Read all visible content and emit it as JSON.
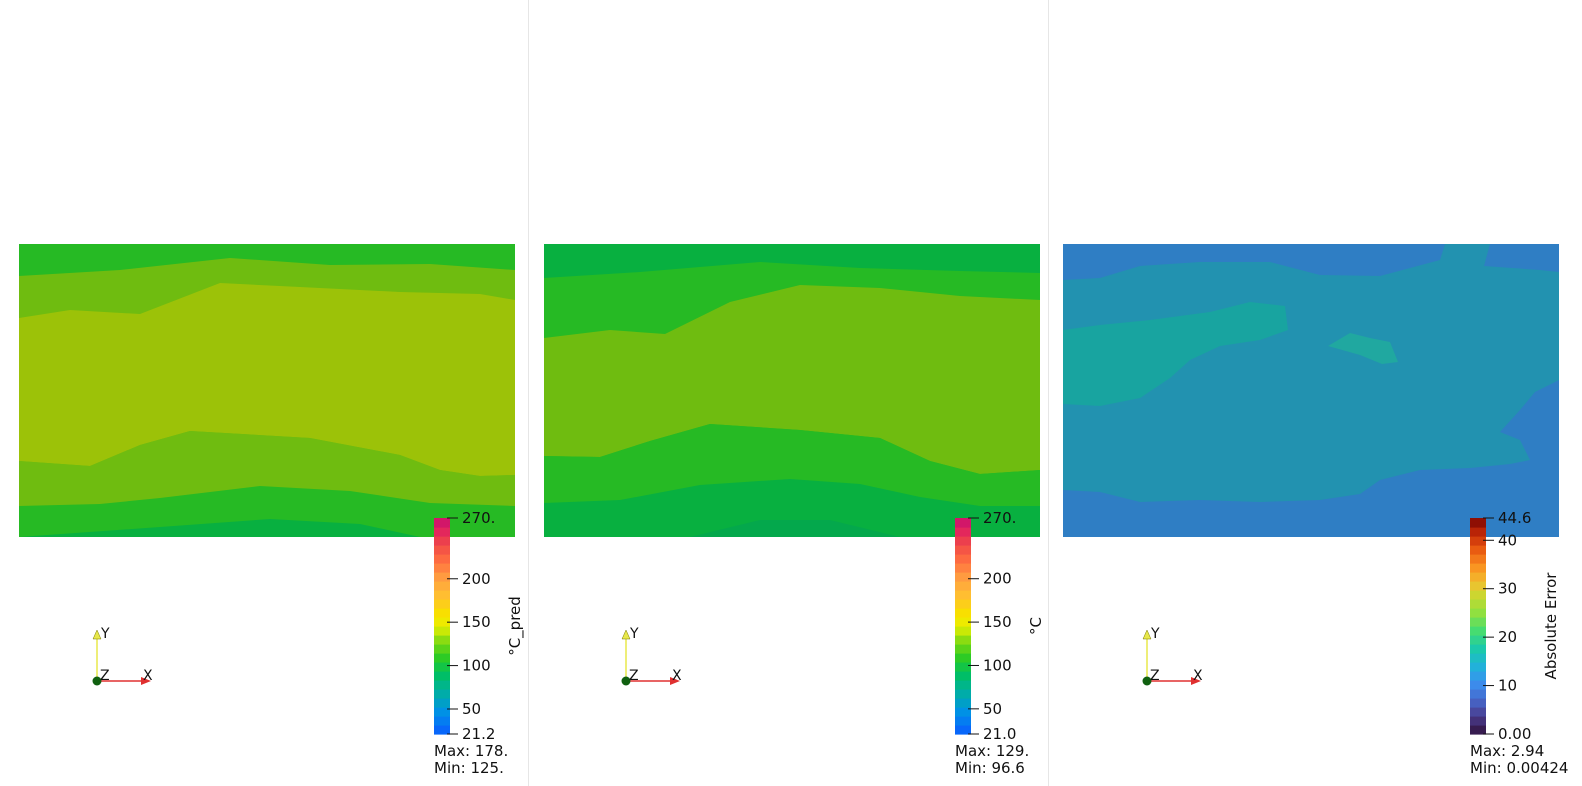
{
  "chart_data": [
    {
      "type": "heatmap",
      "scalar_label": "°C_pred",
      "range": [
        21.2,
        270
      ],
      "tick_labels": [
        "270.",
        "200",
        "150",
        "100",
        "50",
        "21.2"
      ],
      "tick_values": [
        270,
        200,
        150,
        100,
        50,
        21.2
      ],
      "max_label": "Max: 178.",
      "min_label": "Min: 125.",
      "colormap": "rainbow-uniform",
      "bands": [
        {
          "color": "#26ba24"
        },
        {
          "color": "#6fbc10"
        },
        {
          "color": "#9cc208"
        },
        {
          "color": "#6fbc10"
        },
        {
          "color": "#26ba24"
        },
        {
          "color": "#08b040"
        }
      ]
    },
    {
      "type": "heatmap",
      "scalar_label": "°C",
      "range": [
        21.0,
        270
      ],
      "tick_labels": [
        "270.",
        "200",
        "150",
        "100",
        "50",
        "21.0"
      ],
      "tick_values": [
        270,
        200,
        150,
        100,
        50,
        21.0
      ],
      "max_label": "Max: 129.",
      "min_label": "Min: 96.6",
      "colormap": "rainbow-uniform",
      "bands": [
        {
          "color": "#08b040"
        },
        {
          "color": "#26ba24"
        },
        {
          "color": "#6fbc10"
        },
        {
          "color": "#26ba24"
        },
        {
          "color": "#08b040"
        },
        {
          "color": "#04a84c"
        }
      ]
    },
    {
      "type": "heatmap",
      "scalar_label": "Absolute Error",
      "range": [
        0.0,
        44.6
      ],
      "tick_labels": [
        "44.6",
        "40",
        "30",
        "20",
        "10",
        "0.00"
      ],
      "tick_values": [
        44.6,
        40,
        30,
        20,
        10,
        0
      ],
      "max_label": "Max: 2.94",
      "min_label": "Min: 0.00424",
      "colormap": "turbo",
      "bands": [
        {
          "color": "#2f7ec4"
        },
        {
          "color": "#2292b0"
        },
        {
          "color": "#18a4a0"
        },
        {
          "color": "#20a8a0"
        }
      ]
    }
  ],
  "axes_triad": {
    "x_label": "X",
    "y_label": "Y",
    "z_label": "Z"
  }
}
